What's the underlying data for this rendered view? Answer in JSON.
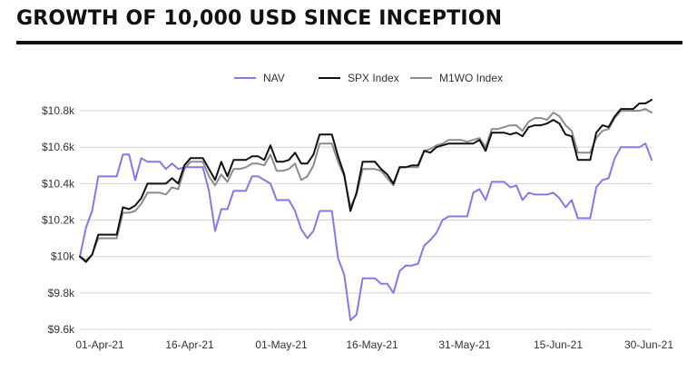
{
  "chart_data": {
    "type": "line",
    "title": "GROWTH OF 10,000 USD SINCE INCEPTION",
    "legend_position": "top-center",
    "grid": true,
    "ylim": [
      9600,
      10900
    ],
    "y_ticks": [
      9600,
      9800,
      10000,
      10200,
      10400,
      10600,
      10800
    ],
    "y_tick_labels": [
      "$9.6k",
      "$9.8k",
      "$10k",
      "$10.2k",
      "$10.4k",
      "$10.6k",
      "$10.8k"
    ],
    "x_tick_labels": [
      "01-Apr-21",
      "16-Apr-21",
      "01-May-21",
      "16-May-21",
      "31-May-21",
      "15-Jun-21",
      "30-Jun-21"
    ],
    "series": [
      {
        "name": "NAV",
        "color": "#8479e8",
        "points": [
          [
            1,
            10000
          ],
          [
            2,
            10160
          ],
          [
            3,
            10250
          ],
          [
            4,
            10440
          ],
          [
            5,
            10440
          ],
          [
            6,
            10440
          ],
          [
            7,
            10440
          ],
          [
            8,
            10560
          ],
          [
            9,
            10560
          ],
          [
            10,
            10420
          ],
          [
            11,
            10540
          ],
          [
            12,
            10520
          ],
          [
            13,
            10520
          ],
          [
            14,
            10520
          ],
          [
            15,
            10480
          ],
          [
            16,
            10510
          ],
          [
            17,
            10480
          ],
          [
            18,
            10490
          ],
          [
            19,
            10490
          ],
          [
            20,
            10490
          ],
          [
            21,
            10490
          ],
          [
            22,
            10360
          ],
          [
            23,
            10140
          ],
          [
            24,
            10260
          ],
          [
            25,
            10260
          ],
          [
            26,
            10360
          ],
          [
            27,
            10360
          ],
          [
            28,
            10360
          ],
          [
            29,
            10440
          ],
          [
            30,
            10440
          ],
          [
            31,
            10420
          ],
          [
            32,
            10400
          ],
          [
            33,
            10310
          ],
          [
            34,
            10310
          ],
          [
            35,
            10310
          ],
          [
            36,
            10250
          ],
          [
            37,
            10150
          ],
          [
            38,
            10100
          ],
          [
            39,
            10140
          ],
          [
            40,
            10250
          ],
          [
            41,
            10250
          ],
          [
            42,
            10250
          ],
          [
            43,
            9990
          ],
          [
            44,
            9900
          ],
          [
            45,
            9650
          ],
          [
            46,
            9680
          ],
          [
            47,
            9880
          ],
          [
            48,
            9880
          ],
          [
            49,
            9880
          ],
          [
            50,
            9850
          ],
          [
            51,
            9850
          ],
          [
            52,
            9800
          ],
          [
            53,
            9920
          ],
          [
            54,
            9950
          ],
          [
            55,
            9950
          ],
          [
            56,
            9960
          ],
          [
            57,
            10060
          ],
          [
            58,
            10090
          ],
          [
            59,
            10130
          ],
          [
            60,
            10200
          ],
          [
            61,
            10220
          ],
          [
            62,
            10220
          ],
          [
            63,
            10220
          ],
          [
            64,
            10220
          ],
          [
            65,
            10350
          ],
          [
            66,
            10370
          ],
          [
            67,
            10310
          ],
          [
            68,
            10410
          ],
          [
            69,
            10410
          ],
          [
            70,
            10410
          ],
          [
            71,
            10380
          ],
          [
            72,
            10390
          ],
          [
            73,
            10310
          ],
          [
            74,
            10350
          ],
          [
            75,
            10340
          ],
          [
            76,
            10340
          ],
          [
            77,
            10340
          ],
          [
            78,
            10350
          ],
          [
            79,
            10320
          ],
          [
            80,
            10270
          ],
          [
            81,
            10310
          ],
          [
            82,
            10210
          ],
          [
            83,
            10210
          ],
          [
            84,
            10210
          ],
          [
            85,
            10380
          ],
          [
            86,
            10420
          ],
          [
            87,
            10430
          ],
          [
            88,
            10540
          ],
          [
            89,
            10600
          ],
          [
            90,
            10600
          ],
          [
            91,
            10600
          ],
          [
            92,
            10600
          ],
          [
            93,
            10620
          ],
          [
            94,
            10530
          ]
        ]
      },
      {
        "name": "SPX Index",
        "color": "#111111",
        "points": [
          [
            1,
            10000
          ],
          [
            2,
            9970
          ],
          [
            3,
            10010
          ],
          [
            4,
            10120
          ],
          [
            5,
            10120
          ],
          [
            6,
            10120
          ],
          [
            7,
            10120
          ],
          [
            8,
            10270
          ],
          [
            9,
            10260
          ],
          [
            10,
            10280
          ],
          [
            11,
            10320
          ],
          [
            12,
            10400
          ],
          [
            13,
            10400
          ],
          [
            14,
            10400
          ],
          [
            15,
            10400
          ],
          [
            16,
            10430
          ],
          [
            17,
            10400
          ],
          [
            18,
            10500
          ],
          [
            19,
            10540
          ],
          [
            20,
            10540
          ],
          [
            21,
            10540
          ],
          [
            22,
            10480
          ],
          [
            23,
            10420
          ],
          [
            24,
            10520
          ],
          [
            25,
            10440
          ],
          [
            26,
            10530
          ],
          [
            27,
            10530
          ],
          [
            28,
            10530
          ],
          [
            29,
            10550
          ],
          [
            30,
            10550
          ],
          [
            31,
            10530
          ],
          [
            32,
            10610
          ],
          [
            33,
            10520
          ],
          [
            34,
            10520
          ],
          [
            35,
            10530
          ],
          [
            36,
            10570
          ],
          [
            37,
            10510
          ],
          [
            38,
            10510
          ],
          [
            39,
            10560
          ],
          [
            40,
            10670
          ],
          [
            41,
            10670
          ],
          [
            42,
            10670
          ],
          [
            43,
            10550
          ],
          [
            44,
            10450
          ],
          [
            45,
            10250
          ],
          [
            46,
            10350
          ],
          [
            47,
            10520
          ],
          [
            48,
            10520
          ],
          [
            49,
            10520
          ],
          [
            50,
            10480
          ],
          [
            51,
            10450
          ],
          [
            52,
            10400
          ],
          [
            53,
            10490
          ],
          [
            54,
            10490
          ],
          [
            55,
            10500
          ],
          [
            56,
            10500
          ],
          [
            57,
            10580
          ],
          [
            58,
            10570
          ],
          [
            59,
            10600
          ],
          [
            60,
            10610
          ],
          [
            61,
            10620
          ],
          [
            62,
            10620
          ],
          [
            63,
            10620
          ],
          [
            64,
            10620
          ],
          [
            65,
            10620
          ],
          [
            66,
            10640
          ],
          [
            67,
            10580
          ],
          [
            68,
            10680
          ],
          [
            69,
            10680
          ],
          [
            70,
            10680
          ],
          [
            71,
            10670
          ],
          [
            72,
            10680
          ],
          [
            73,
            10660
          ],
          [
            74,
            10710
          ],
          [
            75,
            10720
          ],
          [
            76,
            10720
          ],
          [
            77,
            10730
          ],
          [
            78,
            10750
          ],
          [
            79,
            10730
          ],
          [
            80,
            10670
          ],
          [
            81,
            10660
          ],
          [
            82,
            10530
          ],
          [
            83,
            10530
          ],
          [
            84,
            10530
          ],
          [
            85,
            10680
          ],
          [
            86,
            10720
          ],
          [
            87,
            10710
          ],
          [
            88,
            10770
          ],
          [
            89,
            10810
          ],
          [
            90,
            10810
          ],
          [
            91,
            10810
          ],
          [
            92,
            10840
          ],
          [
            93,
            10840
          ],
          [
            94,
            10860
          ]
        ]
      },
      {
        "name": "M1WO Index",
        "color": "#8c8c8c",
        "points": [
          [
            1,
            10000
          ],
          [
            2,
            9980
          ],
          [
            3,
            10010
          ],
          [
            4,
            10100
          ],
          [
            5,
            10100
          ],
          [
            6,
            10100
          ],
          [
            7,
            10100
          ],
          [
            8,
            10240
          ],
          [
            9,
            10240
          ],
          [
            10,
            10250
          ],
          [
            11,
            10290
          ],
          [
            12,
            10350
          ],
          [
            13,
            10350
          ],
          [
            14,
            10350
          ],
          [
            15,
            10340
          ],
          [
            16,
            10380
          ],
          [
            17,
            10370
          ],
          [
            18,
            10480
          ],
          [
            19,
            10520
          ],
          [
            20,
            10520
          ],
          [
            21,
            10520
          ],
          [
            22,
            10440
          ],
          [
            23,
            10390
          ],
          [
            24,
            10450
          ],
          [
            25,
            10410
          ],
          [
            26,
            10480
          ],
          [
            27,
            10480
          ],
          [
            28,
            10490
          ],
          [
            29,
            10510
          ],
          [
            30,
            10510
          ],
          [
            31,
            10500
          ],
          [
            32,
            10560
          ],
          [
            33,
            10470
          ],
          [
            34,
            10470
          ],
          [
            35,
            10480
          ],
          [
            36,
            10510
          ],
          [
            37,
            10420
          ],
          [
            38,
            10440
          ],
          [
            39,
            10500
          ],
          [
            40,
            10620
          ],
          [
            41,
            10620
          ],
          [
            42,
            10620
          ],
          [
            43,
            10520
          ],
          [
            44,
            10440
          ],
          [
            45,
            10270
          ],
          [
            46,
            10340
          ],
          [
            47,
            10480
          ],
          [
            48,
            10480
          ],
          [
            49,
            10480
          ],
          [
            50,
            10470
          ],
          [
            51,
            10430
          ],
          [
            52,
            10390
          ],
          [
            53,
            10490
          ],
          [
            54,
            10490
          ],
          [
            55,
            10490
          ],
          [
            56,
            10490
          ],
          [
            57,
            10580
          ],
          [
            58,
            10590
          ],
          [
            59,
            10610
          ],
          [
            60,
            10620
          ],
          [
            61,
            10640
          ],
          [
            62,
            10640
          ],
          [
            63,
            10640
          ],
          [
            64,
            10630
          ],
          [
            65,
            10640
          ],
          [
            66,
            10650
          ],
          [
            67,
            10600
          ],
          [
            68,
            10700
          ],
          [
            69,
            10700
          ],
          [
            70,
            10710
          ],
          [
            71,
            10720
          ],
          [
            72,
            10720
          ],
          [
            73,
            10690
          ],
          [
            74,
            10740
          ],
          [
            75,
            10760
          ],
          [
            76,
            10760
          ],
          [
            77,
            10750
          ],
          [
            78,
            10790
          ],
          [
            79,
            10770
          ],
          [
            80,
            10720
          ],
          [
            81,
            10690
          ],
          [
            82,
            10570
          ],
          [
            83,
            10570
          ],
          [
            84,
            10570
          ],
          [
            85,
            10650
          ],
          [
            86,
            10690
          ],
          [
            87,
            10700
          ],
          [
            88,
            10760
          ],
          [
            89,
            10800
          ],
          [
            90,
            10800
          ],
          [
            91,
            10800
          ],
          [
            92,
            10800
          ],
          [
            93,
            10810
          ],
          [
            94,
            10790
          ]
        ]
      }
    ]
  }
}
